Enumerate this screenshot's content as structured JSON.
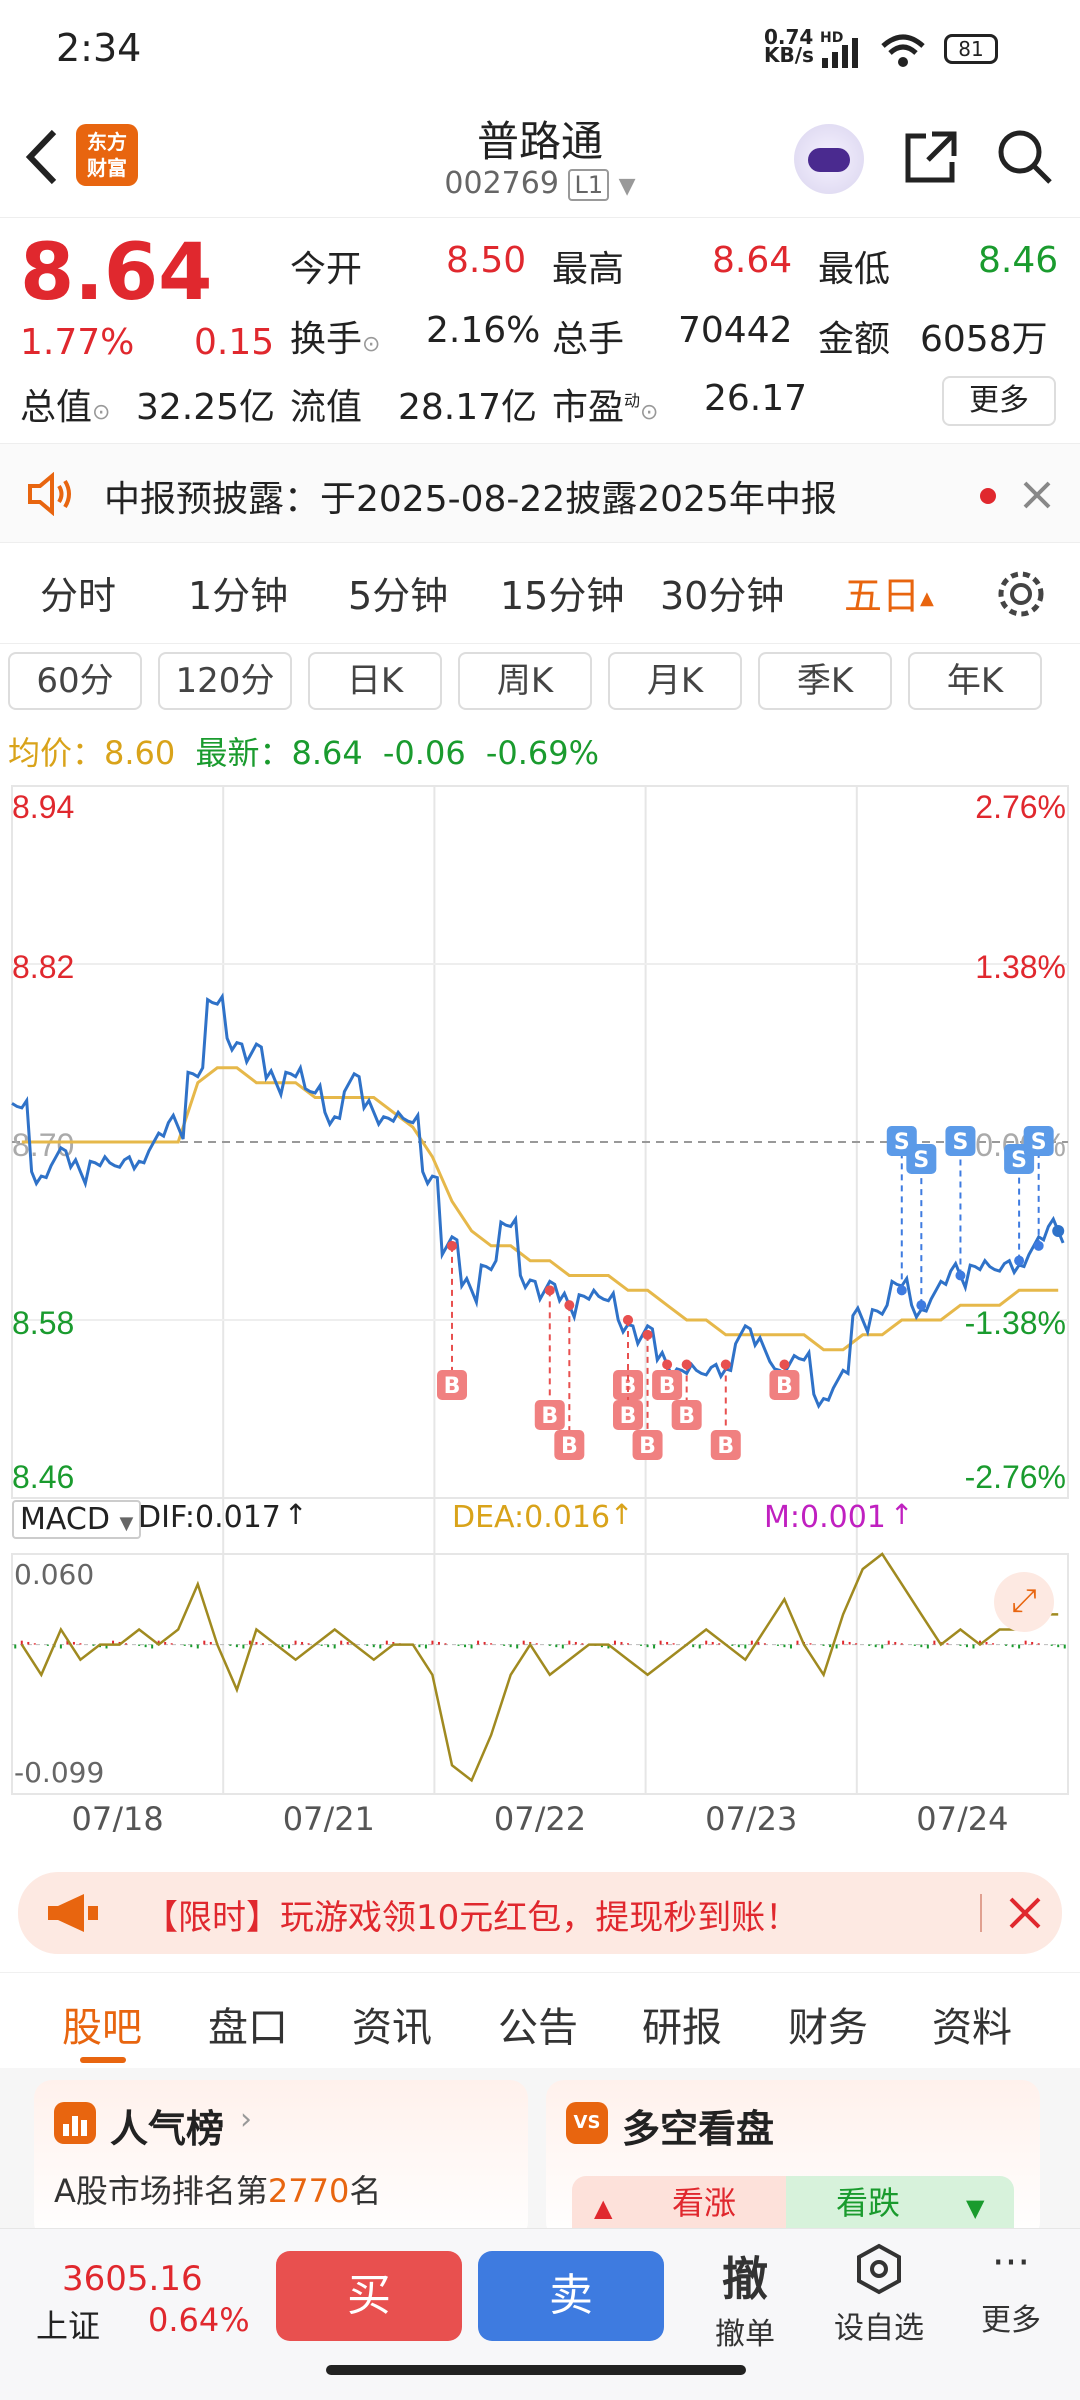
{
  "status": {
    "time": "2:34",
    "net_speed": "0.74",
    "net_unit": "KB/s",
    "hd": "HD",
    "battery": "81"
  },
  "header": {
    "logo_line1": "东方",
    "logo_line2": "财富",
    "title": "普路通",
    "code": "002769",
    "level": "L1"
  },
  "quote": {
    "price": "8.64",
    "pct": "1.77%",
    "change": "0.15",
    "open_label": "今开",
    "open": "8.50",
    "high_label": "最高",
    "high": "8.64",
    "low_label": "最低",
    "low": "8.46",
    "turnover_label": "换手",
    "turnover": "2.16%",
    "vol_label": "总手",
    "vol": "70442",
    "amount_label": "金额",
    "amount": "6058万",
    "mcap_label": "总值",
    "mcap": "32.25亿",
    "float_label": "流值",
    "float": "28.17亿",
    "pe_label": "市盈",
    "pe_sup": "动",
    "pe": "26.17",
    "more": "更多"
  },
  "notice": {
    "text": "中报预披露：于2025-08-22披露2025年中报"
  },
  "tabs1": [
    "分时",
    "1分钟",
    "5分钟",
    "15分钟",
    "30分钟",
    "五日"
  ],
  "tabs2": [
    "60分",
    "120分",
    "日K",
    "周K",
    "月K",
    "季K",
    "年K"
  ],
  "legend": {
    "avg_label": "均价：",
    "avg": "8.60",
    "latest_label": "最新：",
    "latest": "8.64",
    "chg": "-0.06",
    "pct": "-0.69%"
  },
  "macd": {
    "label": "MACD",
    "dif": "DIF:0.017",
    "dea": "DEA:0.016",
    "m": "M:0.001",
    "top": "0.060",
    "bottom": "-0.099"
  },
  "chart_data": {
    "type": "line",
    "title": "",
    "y_left": [
      "8.94",
      "8.82",
      "8.70",
      "8.58",
      "8.46"
    ],
    "y_right": [
      "2.76%",
      "1.38%",
      "0.00%",
      "-1.38%",
      "-2.76%"
    ],
    "x_labels": [
      "07/18",
      "07/21",
      "07/22",
      "07/23",
      "07/24"
    ],
    "ylim": [
      8.46,
      8.94
    ],
    "prev_close": 8.7,
    "price": [
      8.72,
      8.68,
      8.69,
      8.68,
      8.69,
      8.68,
      8.69,
      8.7,
      8.71,
      8.75,
      8.79,
      8.77,
      8.76,
      8.74,
      8.75,
      8.73,
      8.72,
      8.74,
      8.72,
      8.72,
      8.71,
      8.68,
      8.63,
      8.6,
      8.62,
      8.64,
      8.61,
      8.6,
      8.59,
      8.6,
      8.59,
      8.58,
      8.57,
      8.55,
      8.55,
      8.54,
      8.55,
      8.57,
      8.56,
      8.55,
      8.55,
      8.53,
      8.54,
      8.58,
      8.59,
      8.6,
      8.59,
      8.6,
      8.61,
      8.62,
      8.61,
      8.62,
      8.63,
      8.64
    ],
    "avg": [
      8.7,
      8.7,
      8.7,
      8.7,
      8.7,
      8.7,
      8.7,
      8.7,
      8.7,
      8.74,
      8.75,
      8.75,
      8.74,
      8.74,
      8.74,
      8.73,
      8.73,
      8.73,
      8.73,
      8.72,
      8.71,
      8.69,
      8.66,
      8.64,
      8.63,
      8.63,
      8.62,
      8.62,
      8.61,
      8.61,
      8.61,
      8.6,
      8.6,
      8.59,
      8.58,
      8.58,
      8.57,
      8.57,
      8.57,
      8.57,
      8.57,
      8.56,
      8.56,
      8.57,
      8.57,
      8.58,
      8.58,
      8.58,
      8.59,
      8.59,
      8.59,
      8.6,
      8.6,
      8.6
    ],
    "buy_marks": [
      22,
      27,
      28,
      31,
      31,
      32,
      33,
      34,
      36,
      39
    ],
    "sell_marks": [
      45,
      46,
      48,
      51,
      52
    ],
    "macd_line": [
      0.0,
      -0.02,
      0.01,
      -0.01,
      0.0,
      0.0,
      0.01,
      0.0,
      0.01,
      0.04,
      0.0,
      -0.03,
      0.01,
      0.0,
      -0.01,
      0.0,
      0.01,
      0.0,
      -0.01,
      0.0,
      0.0,
      -0.02,
      -0.08,
      -0.09,
      -0.06,
      -0.02,
      0.0,
      -0.02,
      -0.01,
      0.0,
      0.0,
      -0.01,
      -0.02,
      -0.01,
      0.0,
      0.01,
      0.0,
      -0.01,
      0.01,
      0.03,
      0.0,
      -0.02,
      0.02,
      0.05,
      0.06,
      0.04,
      0.02,
      0.0,
      0.01,
      0.0,
      0.01,
      0.01,
      0.02,
      0.02
    ]
  },
  "banner": {
    "text": "【限时】玩游戏领10元红包，提现秒到账！"
  },
  "btabs": [
    "股吧",
    "盘口",
    "资讯",
    "公告",
    "研报",
    "财务",
    "资料"
  ],
  "cards": {
    "left_title": "人气榜",
    "left_sub_pre": "A股市场排名第",
    "left_rank": "2770",
    "left_sub_post": "名",
    "right_title": "多空看盘",
    "bull": "看涨",
    "bear": "看跌"
  },
  "bottom": {
    "index_val": "3605.16",
    "index_name": "上证",
    "index_pct": "0.64%",
    "buy": "买",
    "sell": "卖",
    "cancel_big": "撤",
    "cancel": "撤单",
    "watch": "设自选",
    "more": "更多"
  },
  "colors": {
    "red": "#e0282e",
    "green": "#1a9b2e",
    "accent": "#e8650f",
    "blue": "#2f72c8",
    "avg": "#e6b84a"
  }
}
